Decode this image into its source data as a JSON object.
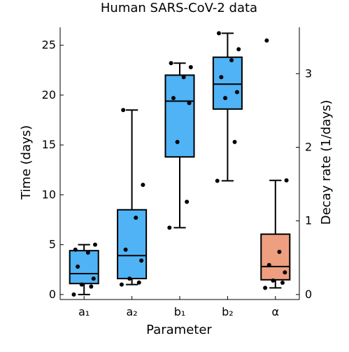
{
  "chart_data": {
    "type": "box",
    "title": "Human SARS-CoV-2 data",
    "xlabel": "Parameter",
    "ylabel_left": "Time (days)",
    "ylabel_right": "Decay rate (1/days)",
    "categories": [
      "a₁",
      "a₂",
      "b₁",
      "b₂",
      "α"
    ],
    "ylim_left": [
      -0.5,
      26.8
    ],
    "yticks_left": [
      0,
      5,
      10,
      15,
      20,
      25
    ],
    "ylim_right": [
      -0.068,
      3.63
    ],
    "yticks_right": [
      0,
      1,
      2,
      3
    ],
    "grid": false,
    "colors": {
      "time": "#4fb3f5",
      "rate": "#ee9f80",
      "points": "#000000"
    },
    "boxes": [
      {
        "category": "a₁",
        "axis": "left",
        "min": 0.0,
        "q1": 1.1,
        "median": 2.1,
        "q3": 4.4,
        "max": 5.0,
        "points": [
          4.5,
          5.0,
          4.2,
          2.8,
          1.6,
          1.0,
          0.8,
          0.0
        ]
      },
      {
        "category": "a₂",
        "axis": "left",
        "min": 1.0,
        "q1": 1.6,
        "median": 3.9,
        "q3": 8.5,
        "max": 18.5,
        "points": [
          18.5,
          11.0,
          7.7,
          4.5,
          3.4,
          1.6,
          1.2,
          1.0
        ]
      },
      {
        "category": "b₁",
        "axis": "left",
        "min": 6.7,
        "q1": 13.8,
        "median": 19.4,
        "q3": 22.0,
        "max": 23.2,
        "points": [
          23.2,
          22.8,
          21.8,
          19.7,
          19.2,
          15.3,
          9.3,
          6.7
        ]
      },
      {
        "category": "b₂",
        "axis": "left",
        "min": 11.4,
        "q1": 18.6,
        "median": 21.1,
        "q3": 23.8,
        "max": 26.2,
        "points": [
          26.2,
          24.6,
          23.5,
          21.8,
          20.3,
          19.7,
          15.3,
          11.4
        ]
      },
      {
        "category": "α",
        "axis": "right",
        "min": 0.09,
        "q1": 0.2,
        "median": 0.38,
        "q3": 0.82,
        "max": 1.55,
        "points": [
          3.45,
          1.55,
          0.58,
          0.4,
          0.3,
          0.19,
          0.16,
          0.09
        ]
      }
    ]
  }
}
